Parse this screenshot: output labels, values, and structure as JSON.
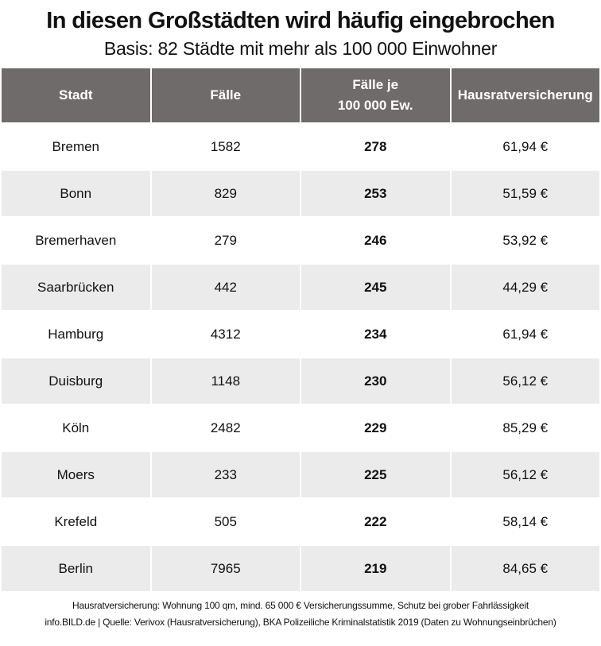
{
  "header": {
    "title": "In diesen Großstädten wird häufig eingebrochen",
    "subtitle": "Basis: 82 Städte mit mehr als 100 000 Einwohner"
  },
  "table": {
    "columns": [
      "Stadt",
      "Fälle",
      "Fälle je\n100 000 Ew.",
      "Hausratversicherung"
    ],
    "rows": [
      [
        "Bremen",
        "1582",
        "278",
        "61,94 €"
      ],
      [
        "Bonn",
        "829",
        "253",
        "51,59 €"
      ],
      [
        "Bremerhaven",
        "279",
        "246",
        "53,92 €"
      ],
      [
        "Saarbrücken",
        "442",
        "245",
        "44,29 €"
      ],
      [
        "Hamburg",
        "4312",
        "234",
        "61,94 €"
      ],
      [
        "Duisburg",
        "1148",
        "230",
        "56,12 €"
      ],
      [
        "Köln",
        "2482",
        "229",
        "85,29 €"
      ],
      [
        "Moers",
        "233",
        "225",
        "56,12 €"
      ],
      [
        "Krefeld",
        "505",
        "222",
        "58,14 €"
      ],
      [
        "Berlin",
        "7965",
        "219",
        "84,65 €"
      ]
    ]
  },
  "footer": {
    "note": "Hausratversicherung: Wohnung 100 qm, mind. 65 000 € Versicherungssumme, Schutz bei grober Fahrlässigkeit",
    "source": "info.BILD.de | Quelle: Verivox (Hausratversicherung), BKA Polizeiliche Kriminalstatistik 2019 (Daten zu Wohnungseinbrüchen)"
  }
}
